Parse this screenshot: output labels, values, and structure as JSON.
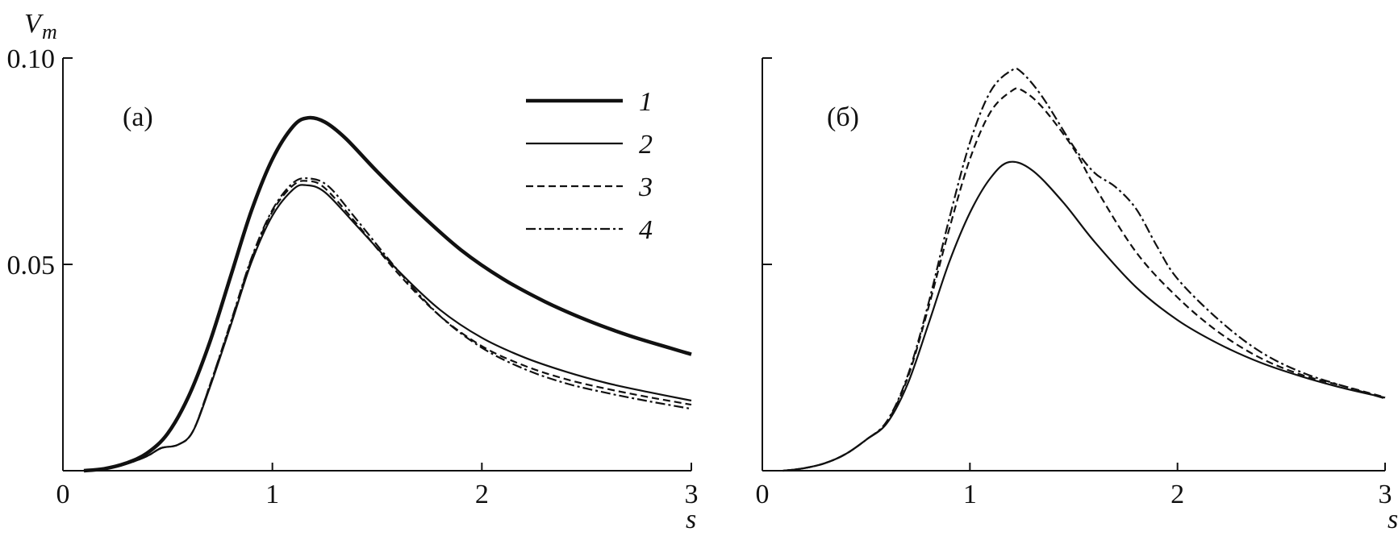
{
  "chart_data": [
    {
      "type": "line",
      "panel_label": "(a)",
      "ylabel": "V",
      "ylabel_sub": "m",
      "xlabel": "s",
      "xlim": [
        0,
        3
      ],
      "ylim": [
        0,
        0.1
      ],
      "x_ticks": [
        0,
        1,
        2,
        3
      ],
      "x_tick_labels": [
        "0",
        "1",
        "2",
        "3"
      ],
      "y_ticks": [
        0.05,
        0.1
      ],
      "y_tick_labels": [
        "0.05",
        "0.10"
      ],
      "legend": {
        "placement": "top-right",
        "entries": [
          "1",
          "2",
          "3",
          "4"
        ]
      },
      "series": [
        {
          "name": "1",
          "style": "thick-solid",
          "points": [
            [
              0.1,
              0.0
            ],
            [
              0.2,
              0.0005
            ],
            [
              0.3,
              0.0018
            ],
            [
              0.4,
              0.0042
            ],
            [
              0.5,
              0.009
            ],
            [
              0.6,
              0.018
            ],
            [
              0.7,
              0.031
            ],
            [
              0.8,
              0.047
            ],
            [
              0.9,
              0.063
            ],
            [
              1.0,
              0.0755
            ],
            [
              1.1,
              0.0835
            ],
            [
              1.17,
              0.0855
            ],
            [
              1.25,
              0.0845
            ],
            [
              1.35,
              0.0805
            ],
            [
              1.5,
              0.0725
            ],
            [
              1.7,
              0.0625
            ],
            [
              1.9,
              0.0535
            ],
            [
              2.1,
              0.0465
            ],
            [
              2.3,
              0.041
            ],
            [
              2.5,
              0.0365
            ],
            [
              2.7,
              0.0328
            ],
            [
              2.9,
              0.0297
            ],
            [
              3.0,
              0.0282
            ]
          ]
        },
        {
          "name": "2",
          "style": "solid",
          "points": [
            [
              0.1,
              0.0
            ],
            [
              0.2,
              0.0005
            ],
            [
              0.3,
              0.0016
            ],
            [
              0.4,
              0.0035
            ],
            [
              0.47,
              0.0055
            ],
            [
              0.55,
              0.0063
            ],
            [
              0.62,
              0.0095
            ],
            [
              0.7,
              0.02
            ],
            [
              0.8,
              0.035
            ],
            [
              0.9,
              0.0505
            ],
            [
              1.0,
              0.0618
            ],
            [
              1.1,
              0.0682
            ],
            [
              1.16,
              0.0692
            ],
            [
              1.25,
              0.0675
            ],
            [
              1.4,
              0.0595
            ],
            [
              1.6,
              0.0485
            ],
            [
              1.8,
              0.039
            ],
            [
              2.0,
              0.0322
            ],
            [
              2.2,
              0.0275
            ],
            [
              2.4,
              0.024
            ],
            [
              2.6,
              0.0212
            ],
            [
              2.8,
              0.019
            ],
            [
              3.0,
              0.017
            ]
          ]
        },
        {
          "name": "3",
          "style": "dashed",
          "points": [
            [
              0.1,
              0.0
            ],
            [
              0.2,
              0.0005
            ],
            [
              0.3,
              0.0016
            ],
            [
              0.4,
              0.0035
            ],
            [
              0.47,
              0.0055
            ],
            [
              0.55,
              0.0063
            ],
            [
              0.62,
              0.0095
            ],
            [
              0.7,
              0.0205
            ],
            [
              0.8,
              0.0355
            ],
            [
              0.9,
              0.0512
            ],
            [
              1.0,
              0.0628
            ],
            [
              1.1,
              0.0692
            ],
            [
              1.17,
              0.0702
            ],
            [
              1.25,
              0.0685
            ],
            [
              1.4,
              0.06
            ],
            [
              1.6,
              0.0478
            ],
            [
              1.8,
              0.0375
            ],
            [
              2.0,
              0.0302
            ],
            [
              2.2,
              0.0255
            ],
            [
              2.4,
              0.0222
            ],
            [
              2.6,
              0.0198
            ],
            [
              2.8,
              0.0178
            ],
            [
              3.0,
              0.016
            ]
          ]
        },
        {
          "name": "4",
          "style": "dash-dot",
          "points": [
            [
              0.1,
              0.0
            ],
            [
              0.2,
              0.0005
            ],
            [
              0.3,
              0.0016
            ],
            [
              0.4,
              0.0035
            ],
            [
              0.47,
              0.0055
            ],
            [
              0.55,
              0.0063
            ],
            [
              0.62,
              0.0095
            ],
            [
              0.7,
              0.0205
            ],
            [
              0.8,
              0.0358
            ],
            [
              0.9,
              0.0515
            ],
            [
              1.0,
              0.0632
            ],
            [
              1.1,
              0.0698
            ],
            [
              1.18,
              0.0708
            ],
            [
              1.27,
              0.0688
            ],
            [
              1.4,
              0.061
            ],
            [
              1.6,
              0.0485
            ],
            [
              1.8,
              0.0375
            ],
            [
              2.0,
              0.0298
            ],
            [
              2.2,
              0.0247
            ],
            [
              2.4,
              0.0212
            ],
            [
              2.6,
              0.0188
            ],
            [
              2.8,
              0.0168
            ],
            [
              3.0,
              0.015
            ]
          ]
        }
      ]
    },
    {
      "type": "line",
      "panel_label": "(б)",
      "xlabel": "s",
      "xlim": [
        0,
        3
      ],
      "ylim": [
        0,
        0.1
      ],
      "x_ticks": [
        0,
        1,
        2,
        3
      ],
      "x_tick_labels": [
        "0",
        "1",
        "2",
        "3"
      ],
      "y_ticks": [
        0.05,
        0.1
      ],
      "y_tick_labels": [
        "",
        ""
      ],
      "series": [
        {
          "name": "2",
          "style": "solid",
          "points": [
            [
              0.1,
              0.0
            ],
            [
              0.2,
              0.0006
            ],
            [
              0.3,
              0.0018
            ],
            [
              0.4,
              0.004
            ],
            [
              0.5,
              0.0075
            ],
            [
              0.6,
              0.0115
            ],
            [
              0.7,
              0.021
            ],
            [
              0.8,
              0.0355
            ],
            [
              0.9,
              0.0505
            ],
            [
              1.0,
              0.0625
            ],
            [
              1.1,
              0.071
            ],
            [
              1.19,
              0.0748
            ],
            [
              1.3,
              0.0728
            ],
            [
              1.45,
              0.065
            ],
            [
              1.6,
              0.0555
            ],
            [
              1.8,
              0.0445
            ],
            [
              2.0,
              0.0365
            ],
            [
              2.2,
              0.0307
            ],
            [
              2.4,
              0.0262
            ],
            [
              2.6,
              0.0228
            ],
            [
              2.8,
              0.02
            ],
            [
              3.0,
              0.0177
            ]
          ]
        },
        {
          "name": "3",
          "style": "dashed",
          "points": [
            [
              0.1,
              0.0
            ],
            [
              0.2,
              0.0006
            ],
            [
              0.3,
              0.0018
            ],
            [
              0.4,
              0.004
            ],
            [
              0.5,
              0.0075
            ],
            [
              0.6,
              0.0118
            ],
            [
              0.7,
              0.0225
            ],
            [
              0.8,
              0.0395
            ],
            [
              0.9,
              0.0585
            ],
            [
              1.0,
              0.0755
            ],
            [
              1.1,
              0.087
            ],
            [
              1.2,
              0.092
            ],
            [
              1.25,
              0.0922
            ],
            [
              1.35,
              0.088
            ],
            [
              1.5,
              0.078
            ],
            [
              1.6,
              0.069
            ],
            [
              1.8,
              0.053
            ],
            [
              2.0,
              0.042
            ],
            [
              2.2,
              0.0335
            ],
            [
              2.4,
              0.0273
            ],
            [
              2.6,
              0.0232
            ],
            [
              2.8,
              0.0205
            ],
            [
              3.0,
              0.0178
            ]
          ]
        },
        {
          "name": "4",
          "style": "dash-dot",
          "points": [
            [
              0.1,
              0.0
            ],
            [
              0.2,
              0.0006
            ],
            [
              0.3,
              0.0018
            ],
            [
              0.4,
              0.004
            ],
            [
              0.5,
              0.0075
            ],
            [
              0.6,
              0.012
            ],
            [
              0.7,
              0.023
            ],
            [
              0.8,
              0.0405
            ],
            [
              0.9,
              0.061
            ],
            [
              1.0,
              0.0795
            ],
            [
              1.1,
              0.092
            ],
            [
              1.2,
              0.097
            ],
            [
              1.25,
              0.0965
            ],
            [
              1.35,
              0.0905
            ],
            [
              1.5,
              0.0785
            ],
            [
              1.6,
              0.0722
            ],
            [
              1.7,
              0.0688
            ],
            [
              1.8,
              0.0635
            ],
            [
              1.9,
              0.0545
            ],
            [
              2.0,
              0.0465
            ],
            [
              2.2,
              0.0365
            ],
            [
              2.4,
              0.0288
            ],
            [
              2.6,
              0.0238
            ],
            [
              2.8,
              0.0205
            ],
            [
              3.0,
              0.0175
            ]
          ]
        }
      ]
    }
  ]
}
